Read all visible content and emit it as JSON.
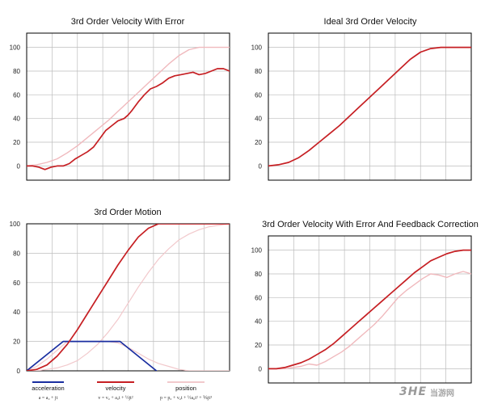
{
  "charts": [
    {
      "title": "3rd Order Velocity With Error",
      "yticks": [
        0,
        20,
        40,
        60,
        80,
        100
      ],
      "ylim": [
        -12,
        112
      ],
      "xlim": [
        0,
        10
      ],
      "grid_x_divisions": 8,
      "series": [
        {
          "color": "#f0b9bd",
          "width": 1.4,
          "x": [
            0,
            0.5,
            1,
            1.5,
            2,
            2.5,
            3,
            3.5,
            4,
            4.5,
            5,
            5.5,
            6,
            6.5,
            7,
            7.5,
            8,
            8.5,
            9,
            9.5,
            10
          ],
          "y": [
            0,
            1,
            3,
            6,
            11,
            17,
            24,
            31,
            38,
            46,
            54,
            62,
            70,
            78,
            86,
            93,
            98,
            100,
            100,
            100,
            100
          ]
        },
        {
          "color": "#c61f23",
          "width": 1.7,
          "x": [
            0,
            0.3,
            0.6,
            0.9,
            1.2,
            1.5,
            1.8,
            2.1,
            2.4,
            2.7,
            3,
            3.3,
            3.6,
            3.9,
            4.2,
            4.5,
            4.8,
            5,
            5.2,
            5.5,
            5.8,
            6.1,
            6.4,
            6.7,
            7,
            7.3,
            7.6,
            7.9,
            8.2,
            8.5,
            8.8,
            9.1,
            9.4,
            9.7,
            10
          ],
          "y": [
            0,
            0,
            -1,
            -3,
            -1,
            0,
            0,
            2,
            6,
            9,
            12,
            16,
            23,
            30,
            34,
            38,
            40,
            43,
            47,
            54,
            60,
            65,
            67,
            70,
            74,
            76,
            77,
            78,
            79,
            77,
            78,
            80,
            82,
            82,
            80
          ]
        }
      ]
    },
    {
      "title": "Ideal 3rd Order Velocity",
      "yticks": [
        0,
        20,
        40,
        60,
        80,
        100
      ],
      "ylim": [
        -12,
        112
      ],
      "xlim": [
        0,
        10
      ],
      "grid_x_divisions": 8,
      "series": [
        {
          "color": "#c61f23",
          "width": 1.7,
          "x": [
            0,
            0.5,
            1,
            1.5,
            2,
            2.5,
            3,
            3.5,
            4,
            4.5,
            5,
            5.5,
            6,
            6.5,
            7,
            7.5,
            8,
            8.5,
            9,
            9.5,
            10
          ],
          "y": [
            0,
            1,
            3,
            7,
            13,
            20,
            27,
            34,
            42,
            50,
            58,
            66,
            74,
            82,
            90,
            96,
            99,
            100,
            100,
            100,
            100
          ]
        }
      ]
    },
    {
      "title": "3rd Order Motion",
      "yticks": [
        0,
        20,
        40,
        60,
        80,
        100
      ],
      "ylim": [
        0,
        100
      ],
      "xlim": [
        0,
        10
      ],
      "grid_x_divisions": 8,
      "series": [
        {
          "color": "#f2c9cc",
          "width": 1.2,
          "x": [
            0,
            0.5,
            1,
            1.5,
            2,
            2.5,
            3,
            3.5,
            4,
            4.5,
            5,
            5.5,
            6,
            6.5,
            7,
            7.5,
            8,
            8.5,
            9,
            9.5,
            10
          ],
          "y": [
            0,
            0,
            1,
            2,
            4,
            7,
            12,
            18,
            26,
            35,
            46,
            57,
            67,
            76,
            83,
            89,
            93,
            96,
            98,
            99,
            100
          ]
        },
        {
          "color": "#f2c9cc",
          "width": 1.2,
          "x": [
            0,
            0.5,
            1,
            1.5,
            2,
            2.5,
            3,
            3.5,
            4,
            4.5,
            5,
            5.5,
            6,
            6.5,
            7,
            7.5,
            8,
            8.5,
            9,
            9.5,
            10
          ],
          "y": [
            0,
            3,
            8,
            14,
            20,
            20,
            20,
            20,
            20,
            19,
            16,
            12,
            8,
            5,
            3,
            1,
            0,
            0,
            0,
            0,
            0
          ]
        },
        {
          "color": "#1a2ea0",
          "width": 1.7,
          "x": [
            0,
            1.8,
            4.6,
            6.4
          ],
          "y": [
            0,
            20,
            20,
            0
          ]
        },
        {
          "color": "#c61f23",
          "width": 1.7,
          "x": [
            0,
            0.5,
            1,
            1.5,
            2,
            2.5,
            3,
            3.5,
            4,
            4.5,
            5,
            5.5,
            6,
            6.5,
            7,
            7.5,
            8,
            8.5,
            9,
            9.5,
            10
          ],
          "y": [
            0,
            1,
            4,
            10,
            18,
            28,
            39,
            50,
            61,
            72,
            82,
            91,
            97,
            100,
            100,
            100,
            100,
            100,
            100,
            100,
            100
          ]
        }
      ]
    },
    {
      "title": "3rd Order Velocity With Error And Feedback Correction",
      "yticks": [
        0,
        20,
        40,
        60,
        80,
        100
      ],
      "ylim": [
        -12,
        112
      ],
      "xlim": [
        0,
        10
      ],
      "grid_x_divisions": 8,
      "series": [
        {
          "color": "#f0b9bd",
          "width": 1.4,
          "x": [
            0,
            0.4,
            0.8,
            1.2,
            1.6,
            2,
            2.4,
            2.8,
            3.2,
            3.6,
            4,
            4.4,
            4.8,
            5.2,
            5.6,
            6,
            6.4,
            6.8,
            7.2,
            7.6,
            8,
            8.4,
            8.8,
            9.2,
            9.6,
            10
          ],
          "y": [
            0,
            0,
            0,
            1,
            2,
            4,
            3,
            6,
            10,
            14,
            19,
            25,
            31,
            37,
            44,
            52,
            60,
            66,
            71,
            76,
            80,
            79,
            77,
            80,
            82,
            80
          ]
        },
        {
          "color": "#c61f23",
          "width": 1.7,
          "x": [
            0,
            0.4,
            0.8,
            1.2,
            1.6,
            2,
            2.4,
            2.8,
            3.2,
            3.6,
            4,
            4.4,
            4.8,
            5.2,
            5.6,
            6,
            6.4,
            6.8,
            7.2,
            7.6,
            8,
            8.4,
            8.8,
            9.2,
            9.6,
            10
          ],
          "y": [
            0,
            0,
            1,
            3,
            5,
            8,
            12,
            16,
            21,
            27,
            33,
            39,
            45,
            51,
            57,
            63,
            69,
            75,
            81,
            86,
            91,
            94,
            97,
            99,
            100,
            100
          ]
        }
      ]
    }
  ],
  "legend": [
    {
      "label": "acceleration",
      "color": "#1a2ea0",
      "formula": "a = a₀ + jt"
    },
    {
      "label": "velocity",
      "color": "#c61f23",
      "formula": "v = v₀ + a₀t + ½jt²"
    },
    {
      "label": "position",
      "color": "#f2c9cc",
      "formula": "p = p₀ + v₀t + ½a₀t² + ⅙jt³"
    }
  ],
  "watermark": {
    "mark": "3HE",
    "text": "当游网"
  }
}
